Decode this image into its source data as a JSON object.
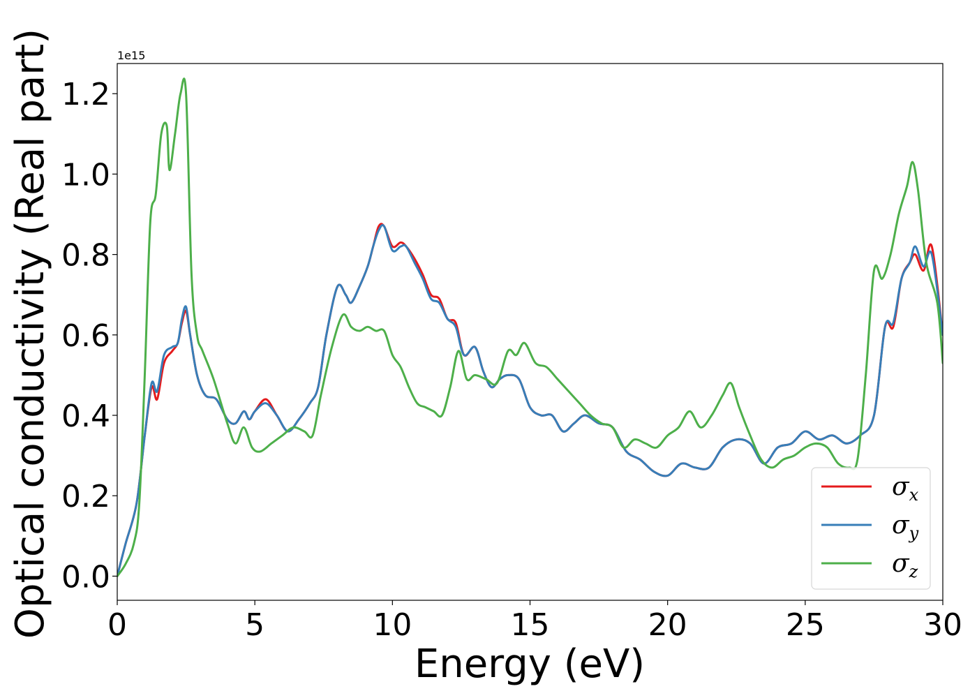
{
  "chart_data": {
    "type": "line",
    "xlabel": "Energy (eV)",
    "ylabel": "Optical conductivity (Real part)",
    "y_offset_label": "1e15",
    "xlim": [
      0,
      30
    ],
    "ylim": [
      -0.06,
      1.275
    ],
    "x_ticks": [
      0,
      5,
      10,
      15,
      20,
      25,
      30
    ],
    "x_tick_labels": [
      "0",
      "5",
      "10",
      "15",
      "20",
      "25",
      "30"
    ],
    "y_ticks": [
      0.0,
      0.2,
      0.4,
      0.6,
      0.8,
      1.0,
      1.2
    ],
    "y_tick_labels": [
      "0.0",
      "0.2",
      "0.4",
      "0.6",
      "0.8",
      "1.0",
      "1.2"
    ],
    "grid": false,
    "legend_position": "bottom-right",
    "series": [
      {
        "name": "σx",
        "legend_base": "σ",
        "legend_sub": "x",
        "color": "#e41a1c",
        "x": [
          0,
          0.3,
          0.7,
          1.0,
          1.25,
          1.45,
          1.7,
          2.0,
          2.2,
          2.35,
          2.5,
          2.65,
          2.9,
          3.2,
          3.6,
          4.0,
          4.3,
          4.6,
          4.8,
          5.0,
          5.4,
          5.8,
          6.2,
          6.6,
          7.0,
          7.3,
          7.6,
          8.0,
          8.3,
          8.5,
          8.8,
          9.1,
          9.3,
          9.5,
          9.7,
          10.0,
          10.3,
          10.5,
          10.8,
          11.1,
          11.4,
          11.7,
          12.0,
          12.3,
          12.6,
          13.0,
          13.3,
          13.6,
          13.9,
          14.2,
          14.6,
          15.0,
          15.4,
          15.8,
          16.2,
          16.6,
          17.0,
          17.5,
          18.0,
          18.5,
          19.0,
          19.5,
          20.0,
          20.5,
          21.0,
          21.5,
          22.0,
          22.5,
          23.0,
          23.5,
          24.0,
          24.5,
          25.0,
          25.5,
          26.0,
          26.5,
          27.0,
          27.5,
          27.9,
          28.2,
          28.5,
          28.8,
          29.0,
          29.3,
          29.6,
          30.0
        ],
        "y": [
          0.0,
          0.08,
          0.18,
          0.35,
          0.47,
          0.44,
          0.53,
          0.56,
          0.58,
          0.63,
          0.66,
          0.6,
          0.5,
          0.45,
          0.44,
          0.39,
          0.38,
          0.41,
          0.39,
          0.41,
          0.44,
          0.4,
          0.36,
          0.39,
          0.43,
          0.47,
          0.6,
          0.72,
          0.7,
          0.68,
          0.72,
          0.77,
          0.82,
          0.87,
          0.87,
          0.82,
          0.83,
          0.82,
          0.79,
          0.75,
          0.7,
          0.69,
          0.64,
          0.63,
          0.55,
          0.57,
          0.51,
          0.47,
          0.49,
          0.5,
          0.49,
          0.42,
          0.4,
          0.4,
          0.36,
          0.38,
          0.4,
          0.38,
          0.37,
          0.31,
          0.29,
          0.26,
          0.25,
          0.28,
          0.27,
          0.27,
          0.32,
          0.34,
          0.33,
          0.28,
          0.32,
          0.33,
          0.36,
          0.34,
          0.35,
          0.33,
          0.35,
          0.4,
          0.62,
          0.62,
          0.74,
          0.78,
          0.8,
          0.76,
          0.82,
          0.6
        ]
      },
      {
        "name": "σy",
        "legend_base": "σ",
        "legend_sub": "y",
        "color": "#377eb8",
        "x": [
          0,
          0.3,
          0.7,
          1.0,
          1.25,
          1.45,
          1.7,
          2.0,
          2.2,
          2.35,
          2.5,
          2.65,
          2.9,
          3.2,
          3.6,
          4.0,
          4.3,
          4.6,
          4.8,
          5.0,
          5.4,
          5.8,
          6.2,
          6.6,
          7.0,
          7.3,
          7.6,
          8.0,
          8.3,
          8.5,
          8.8,
          9.1,
          9.3,
          9.5,
          9.7,
          10.0,
          10.3,
          10.5,
          10.8,
          11.1,
          11.4,
          11.7,
          12.0,
          12.3,
          12.6,
          13.0,
          13.3,
          13.6,
          13.9,
          14.2,
          14.6,
          15.0,
          15.4,
          15.8,
          16.2,
          16.6,
          17.0,
          17.5,
          18.0,
          18.5,
          19.0,
          19.5,
          20.0,
          20.5,
          21.0,
          21.5,
          22.0,
          22.5,
          23.0,
          23.5,
          24.0,
          24.5,
          25.0,
          25.5,
          26.0,
          26.5,
          27.0,
          27.5,
          27.9,
          28.2,
          28.5,
          28.8,
          29.0,
          29.3,
          29.6,
          30.0
        ],
        "y": [
          0.0,
          0.08,
          0.18,
          0.35,
          0.48,
          0.46,
          0.55,
          0.57,
          0.58,
          0.64,
          0.67,
          0.6,
          0.5,
          0.45,
          0.44,
          0.39,
          0.38,
          0.41,
          0.39,
          0.41,
          0.43,
          0.4,
          0.36,
          0.39,
          0.43,
          0.47,
          0.6,
          0.72,
          0.7,
          0.68,
          0.72,
          0.77,
          0.82,
          0.86,
          0.87,
          0.81,
          0.82,
          0.82,
          0.78,
          0.74,
          0.69,
          0.68,
          0.64,
          0.62,
          0.55,
          0.57,
          0.51,
          0.47,
          0.49,
          0.5,
          0.49,
          0.42,
          0.4,
          0.4,
          0.36,
          0.38,
          0.4,
          0.38,
          0.37,
          0.31,
          0.29,
          0.26,
          0.25,
          0.28,
          0.27,
          0.27,
          0.32,
          0.34,
          0.33,
          0.28,
          0.32,
          0.33,
          0.36,
          0.34,
          0.35,
          0.33,
          0.35,
          0.4,
          0.62,
          0.63,
          0.74,
          0.78,
          0.82,
          0.77,
          0.8,
          0.6
        ]
      },
      {
        "name": "σz",
        "legend_base": "σ",
        "legend_sub": "z",
        "color": "#4daf4a",
        "x": [
          0,
          0.3,
          0.6,
          0.8,
          1.0,
          1.2,
          1.4,
          1.6,
          1.8,
          1.9,
          2.1,
          2.3,
          2.5,
          2.7,
          2.9,
          3.1,
          3.5,
          4.0,
          4.3,
          4.6,
          4.9,
          5.2,
          5.6,
          6.0,
          6.4,
          6.8,
          7.1,
          7.4,
          7.8,
          8.2,
          8.5,
          8.8,
          9.1,
          9.4,
          9.7,
          10.0,
          10.3,
          10.6,
          10.9,
          11.2,
          11.5,
          11.8,
          12.1,
          12.4,
          12.7,
          13.0,
          13.4,
          13.8,
          14.2,
          14.5,
          14.8,
          15.2,
          15.6,
          16.0,
          16.4,
          16.8,
          17.2,
          17.6,
          18.0,
          18.4,
          18.8,
          19.2,
          19.6,
          20.0,
          20.4,
          20.8,
          21.2,
          21.6,
          22.0,
          22.3,
          22.6,
          23.0,
          23.4,
          23.8,
          24.2,
          24.6,
          25.0,
          25.4,
          25.8,
          26.2,
          26.6,
          26.9,
          27.2,
          27.5,
          27.8,
          28.1,
          28.4,
          28.7,
          28.9,
          29.1,
          29.4,
          29.8,
          30.0
        ],
        "y": [
          0.0,
          0.03,
          0.08,
          0.18,
          0.5,
          0.88,
          0.95,
          1.1,
          1.12,
          1.01,
          1.1,
          1.2,
          1.2,
          0.75,
          0.6,
          0.56,
          0.49,
          0.38,
          0.33,
          0.37,
          0.32,
          0.31,
          0.33,
          0.35,
          0.37,
          0.36,
          0.35,
          0.45,
          0.57,
          0.65,
          0.62,
          0.61,
          0.62,
          0.61,
          0.61,
          0.55,
          0.52,
          0.47,
          0.43,
          0.42,
          0.41,
          0.4,
          0.47,
          0.56,
          0.49,
          0.5,
          0.49,
          0.48,
          0.56,
          0.55,
          0.58,
          0.53,
          0.52,
          0.49,
          0.46,
          0.43,
          0.4,
          0.38,
          0.37,
          0.32,
          0.34,
          0.33,
          0.32,
          0.35,
          0.37,
          0.41,
          0.37,
          0.4,
          0.45,
          0.48,
          0.42,
          0.35,
          0.29,
          0.27,
          0.29,
          0.3,
          0.32,
          0.33,
          0.32,
          0.28,
          0.27,
          0.29,
          0.5,
          0.76,
          0.74,
          0.8,
          0.9,
          0.97,
          1.03,
          0.96,
          0.78,
          0.68,
          0.53
        ]
      }
    ]
  }
}
